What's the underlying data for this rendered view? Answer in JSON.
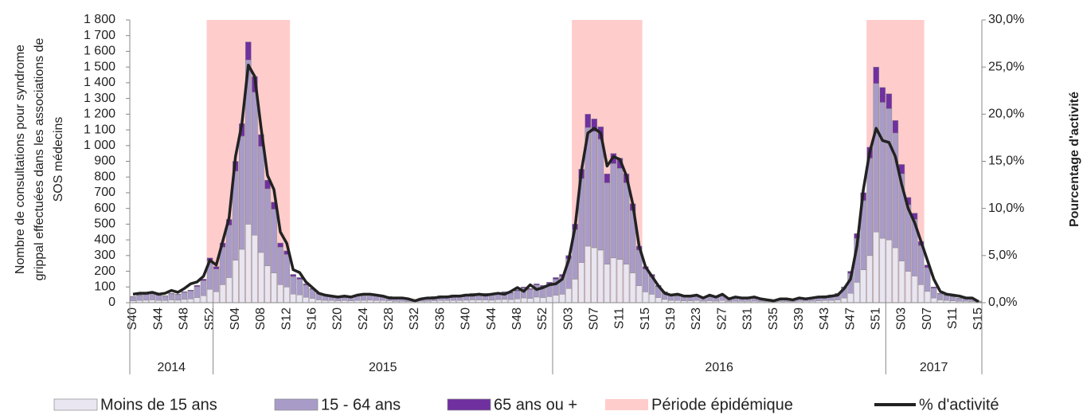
{
  "chart_data": {
    "type": "bar",
    "y_title_lines": [
      "Nombre de consultations pour syndrome",
      "grippal effectuées dans les associations de",
      "SOS médecins"
    ],
    "y2_title": "Pourcentage d'activité",
    "categories": [
      "S40",
      null,
      null,
      null,
      "S44",
      null,
      null,
      null,
      "S48",
      null,
      null,
      null,
      "S52",
      null,
      null,
      null,
      "S04",
      null,
      null,
      null,
      "S08",
      null,
      null,
      null,
      "S12",
      null,
      null,
      null,
      "S16",
      null,
      null,
      null,
      "S20",
      null,
      null,
      null,
      "S24",
      null,
      null,
      null,
      "S28",
      null,
      null,
      null,
      "S32",
      null,
      null,
      null,
      "S36",
      null,
      null,
      null,
      "S40",
      null,
      null,
      null,
      "S44",
      null,
      null,
      null,
      "S48",
      null,
      null,
      null,
      "S52",
      null,
      null,
      null,
      "S03",
      null,
      null,
      null,
      "S07",
      null,
      null,
      null,
      "S11",
      null,
      null,
      null,
      "S15",
      null,
      null,
      null,
      "S19",
      null,
      null,
      null,
      "S23",
      null,
      null,
      null,
      "S27",
      null,
      null,
      null,
      "S31",
      null,
      null,
      null,
      "S35",
      null,
      null,
      null,
      "S39",
      null,
      null,
      null,
      "S43",
      null,
      null,
      null,
      "S47",
      null,
      null,
      null,
      "S51",
      null,
      null,
      null,
      "S03",
      null,
      null,
      null,
      "S07",
      null,
      null,
      null,
      "S11",
      null,
      null,
      null,
      "S15"
    ],
    "year_groups": [
      {
        "label": "2014",
        "weeks": 13
      },
      {
        "label": "2015",
        "weeks": 53
      },
      {
        "label": "2016",
        "weeks": 52
      },
      {
        "label": "2017",
        "weeks": 15
      }
    ],
    "ylim": [
      0,
      1800
    ],
    "yticks": [
      0,
      100,
      200,
      300,
      400,
      500,
      600,
      700,
      800,
      900,
      {
        "value": 1000,
        "label": "1 000"
      },
      {
        "value": 1100,
        "label": "1 100"
      },
      {
        "value": 1200,
        "label": "1 200"
      },
      {
        "value": 1300,
        "label": "1 300"
      },
      {
        "value": 1400,
        "label": "1 400"
      },
      {
        "value": 1500,
        "label": "1 500"
      },
      {
        "value": 1600,
        "label": "1 600"
      },
      {
        "value": 1700,
        "label": "1 700"
      },
      {
        "value": 1800,
        "label": "1 800"
      }
    ],
    "y2lim": [
      0,
      30
    ],
    "y2ticks": [
      {
        "value": 0,
        "label": "0,0%"
      },
      {
        "value": 5,
        "label": "5,0%"
      },
      {
        "value": 10,
        "label": "10,0%"
      },
      {
        "value": 15,
        "label": "15,0%"
      },
      {
        "value": 20,
        "label": "20,0%"
      },
      {
        "value": 25,
        "label": "25,0%"
      },
      {
        "value": 30,
        "label": "30,0%"
      }
    ],
    "series": [
      {
        "name": "Moins de 15 ans",
        "color": "#e9e5f1",
        "values": [
          12,
          15,
          16,
          18,
          15,
          14,
          18,
          16,
          21,
          24,
          33,
          45,
          85,
          70,
          115,
          160,
          270,
          340,
          500,
          430,
          320,
          235,
          190,
          115,
          100,
          55,
          50,
          35,
          27,
          18,
          15,
          14,
          12,
          14,
          12,
          14,
          15,
          16,
          15,
          14,
          12,
          9,
          9,
          8,
          6,
          9,
          10,
          12,
          14,
          14,
          15,
          15,
          16,
          18,
          18,
          18,
          16,
          20,
          21,
          20,
          24,
          30,
          27,
          36,
          33,
          39,
          48,
          54,
          90,
          150,
          255,
          360,
          350,
          335,
          245,
          285,
          275,
          245,
          190,
          108,
          69,
          54,
          33,
          21,
          15,
          14,
          12,
          12,
          14,
          10,
          12,
          10,
          14,
          8,
          9,
          9,
          9,
          10,
          8,
          6,
          5,
          8,
          8,
          6,
          9,
          9,
          10,
          12,
          14,
          15,
          18,
          30,
          60,
          130,
          210,
          300,
          450,
          410,
          400,
          350,
          265,
          200,
          170,
          115,
          72,
          30,
          18,
          15,
          12,
          9,
          9,
          8,
          3
        ]
      },
      {
        "name": "15 - 64 ans",
        "color": "#a99bc8",
        "values": [
          25,
          31,
          35,
          38,
          31,
          28,
          38,
          35,
          44,
          50,
          69,
          95,
          180,
          144,
          238,
          333,
          567,
          720,
          1045,
          910,
          675,
          490,
          405,
          238,
          207,
          112,
          99,
          77,
          57,
          38,
          31,
          28,
          25,
          28,
          25,
          28,
          31,
          35,
          31,
          28,
          25,
          19,
          19,
          15,
          13,
          19,
          23,
          25,
          28,
          28,
          31,
          31,
          35,
          38,
          38,
          38,
          35,
          40,
          44,
          40,
          50,
          63,
          57,
          76,
          69,
          82,
          101,
          113,
          189,
          315,
          535,
          755,
          740,
          705,
          518,
          600,
          580,
          518,
          396,
          227,
          145,
          113,
          69,
          44,
          31,
          28,
          25,
          25,
          28,
          23,
          25,
          23,
          28,
          15,
          19,
          19,
          19,
          23,
          15,
          13,
          9,
          15,
          15,
          13,
          19,
          19,
          23,
          25,
          28,
          31,
          38,
          63,
          126,
          279,
          440,
          620,
          945,
          865,
          835,
          730,
          555,
          423,
          360,
          248,
          151,
          63,
          38,
          31,
          25,
          19,
          19,
          15,
          6
        ]
      },
      {
        "name": "65 ans ou +",
        "color": "#7030a0",
        "values": [
          3,
          4,
          4,
          4,
          4,
          3,
          4,
          4,
          5,
          6,
          8,
          10,
          20,
          16,
          27,
          37,
          63,
          80,
          115,
          100,
          75,
          55,
          45,
          27,
          23,
          13,
          11,
          8,
          6,
          4,
          4,
          3,
          3,
          3,
          3,
          3,
          4,
          4,
          4,
          3,
          3,
          2,
          2,
          2,
          1,
          2,
          2,
          3,
          3,
          3,
          4,
          4,
          4,
          4,
          4,
          4,
          4,
          5,
          5,
          5,
          6,
          7,
          6,
          8,
          8,
          9,
          11,
          13,
          21,
          35,
          60,
          85,
          80,
          80,
          57,
          65,
          65,
          57,
          44,
          25,
          16,
          13,
          8,
          5,
          4,
          3,
          3,
          3,
          3,
          2,
          3,
          2,
          3,
          2,
          2,
          2,
          2,
          2,
          2,
          1,
          1,
          2,
          2,
          1,
          2,
          2,
          2,
          3,
          3,
          4,
          4,
          7,
          14,
          31,
          50,
          70,
          105,
          95,
          95,
          80,
          60,
          47,
          40,
          27,
          17,
          7,
          4,
          4,
          3,
          2,
          2,
          2,
          1
        ]
      },
      {
        "name": "Période épidémique",
        "color": "#ffcccc",
        "periods": [
          [
            12,
            24
          ],
          [
            69,
            79
          ],
          [
            115,
            123
          ]
        ]
      },
      {
        "name": "% d'activité",
        "color": "#222222",
        "axis": "y2",
        "values": [
          0.9,
          1.0,
          1.0,
          1.1,
          0.9,
          1.0,
          1.3,
          1.1,
          1.5,
          2.0,
          2.2,
          2.8,
          4.5,
          4.0,
          6.5,
          9.0,
          15.5,
          19.0,
          25.2,
          24.0,
          18.5,
          13.5,
          12.0,
          7.5,
          6.3,
          3.5,
          3.2,
          2.2,
          1.6,
          1.0,
          0.8,
          0.7,
          0.6,
          0.7,
          0.6,
          0.8,
          0.9,
          0.9,
          0.8,
          0.7,
          0.5,
          0.5,
          0.5,
          0.4,
          0.2,
          0.4,
          0.5,
          0.5,
          0.6,
          0.6,
          0.7,
          0.7,
          0.8,
          0.8,
          0.9,
          0.8,
          0.9,
          1.0,
          0.9,
          1.2,
          1.6,
          1.2,
          1.9,
          1.4,
          1.6,
          1.9,
          2.0,
          2.5,
          4.5,
          8.0,
          14.0,
          18.0,
          18.5,
          18.0,
          14.5,
          15.5,
          15.2,
          13.5,
          10.5,
          6.0,
          3.8,
          2.8,
          1.8,
          1.0,
          0.8,
          0.9,
          0.7,
          0.7,
          0.8,
          0.5,
          0.8,
          0.6,
          0.9,
          0.4,
          0.6,
          0.5,
          0.5,
          0.6,
          0.4,
          0.3,
          0.2,
          0.4,
          0.4,
          0.3,
          0.5,
          0.4,
          0.5,
          0.6,
          0.6,
          0.7,
          0.8,
          1.5,
          2.5,
          6.0,
          12.0,
          16.0,
          18.5,
          17.2,
          17.0,
          15.5,
          12.5,
          10.0,
          8.5,
          6.5,
          4.5,
          2.5,
          1.2,
          0.9,
          0.8,
          0.7,
          0.5,
          0.5,
          0.1
        ]
      }
    ]
  }
}
